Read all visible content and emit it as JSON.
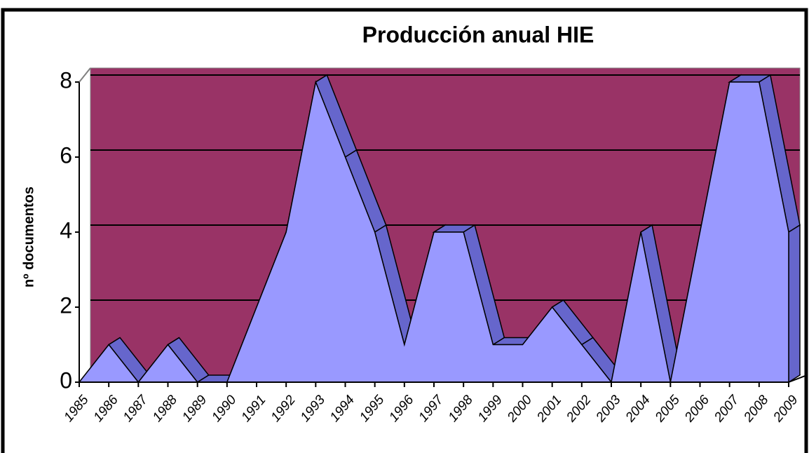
{
  "chart_data": {
    "type": "area3d",
    "title": "Producción anual HIE",
    "y_label": "nº documentos",
    "categories": [
      "1985",
      "1986",
      "1987",
      "1988",
      "1989",
      "1990",
      "1991",
      "1992",
      "1993",
      "1994",
      "1995",
      "1996",
      "1997",
      "1998",
      "1999",
      "2000",
      "2001",
      "2002",
      "2003",
      "2004",
      "2005",
      "2006",
      "2007",
      "2008",
      "2009"
    ],
    "values": [
      0,
      1,
      0,
      1,
      0,
      0,
      2,
      4,
      8,
      6,
      4,
      1,
      4,
      4,
      1,
      1,
      2,
      1,
      0,
      4,
      0,
      4,
      8,
      8,
      4
    ],
    "color": "#9999ff",
    "wall_color": "#993366",
    "ylim": [
      0,
      8
    ],
    "yticks": [
      0,
      2,
      4,
      6,
      8
    ],
    "grid": true
  }
}
